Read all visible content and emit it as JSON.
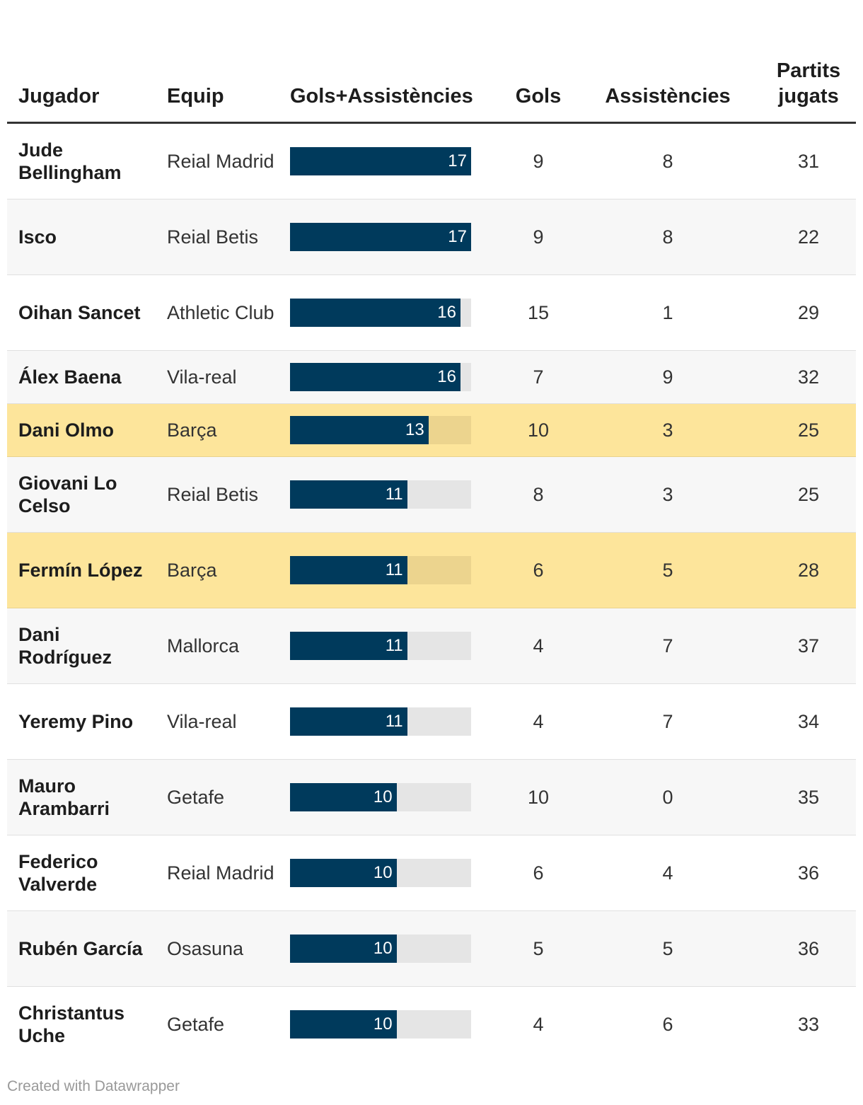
{
  "chart_data": {
    "type": "table",
    "columns": [
      "Jugador",
      "Equip",
      "Gols+Assistències",
      "Gols",
      "Assistències",
      "Partits jugats"
    ],
    "bar_max": 17,
    "colors": {
      "bar": "#003a5c",
      "bar_track": "#e5e5e5",
      "highlight": "#fde59b"
    },
    "rows": [
      {
        "player": "Jude Bellingham",
        "team": "Reial Madrid",
        "ga": 17,
        "goals": 9,
        "assists": 8,
        "played": 31,
        "highlight": false
      },
      {
        "player": "Isco",
        "team": "Reial Betis",
        "ga": 17,
        "goals": 9,
        "assists": 8,
        "played": 22,
        "highlight": false
      },
      {
        "player": "Oihan Sancet",
        "team": "Athletic Club",
        "ga": 16,
        "goals": 15,
        "assists": 1,
        "played": 29,
        "highlight": false
      },
      {
        "player": "Álex Baena",
        "team": "Vila-real",
        "ga": 16,
        "goals": 7,
        "assists": 9,
        "played": 32,
        "highlight": false
      },
      {
        "player": "Dani Olmo",
        "team": "Barça",
        "ga": 13,
        "goals": 10,
        "assists": 3,
        "played": 25,
        "highlight": true
      },
      {
        "player": "Giovani Lo Celso",
        "team": "Reial Betis",
        "ga": 11,
        "goals": 8,
        "assists": 3,
        "played": 25,
        "highlight": false
      },
      {
        "player": "Fermín López",
        "team": "Barça",
        "ga": 11,
        "goals": 6,
        "assists": 5,
        "played": 28,
        "highlight": true
      },
      {
        "player": "Dani Rodríguez",
        "team": "Mallorca",
        "ga": 11,
        "goals": 4,
        "assists": 7,
        "played": 37,
        "highlight": false
      },
      {
        "player": "Yeremy Pino",
        "team": "Vila-real",
        "ga": 11,
        "goals": 4,
        "assists": 7,
        "played": 34,
        "highlight": false
      },
      {
        "player": "Mauro Arambarri",
        "team": "Getafe",
        "ga": 10,
        "goals": 10,
        "assists": 0,
        "played": 35,
        "highlight": false
      },
      {
        "player": "Federico Valverde",
        "team": "Reial Madrid",
        "ga": 10,
        "goals": 6,
        "assists": 4,
        "played": 36,
        "highlight": false
      },
      {
        "player": "Rubén García",
        "team": "Osasuna",
        "ga": 10,
        "goals": 5,
        "assists": 5,
        "played": 36,
        "highlight": false
      },
      {
        "player": "Christantus Uche",
        "team": "Getafe",
        "ga": 10,
        "goals": 4,
        "assists": 6,
        "played": 33,
        "highlight": false
      }
    ]
  },
  "footer": {
    "credit": "Created with Datawrapper"
  }
}
